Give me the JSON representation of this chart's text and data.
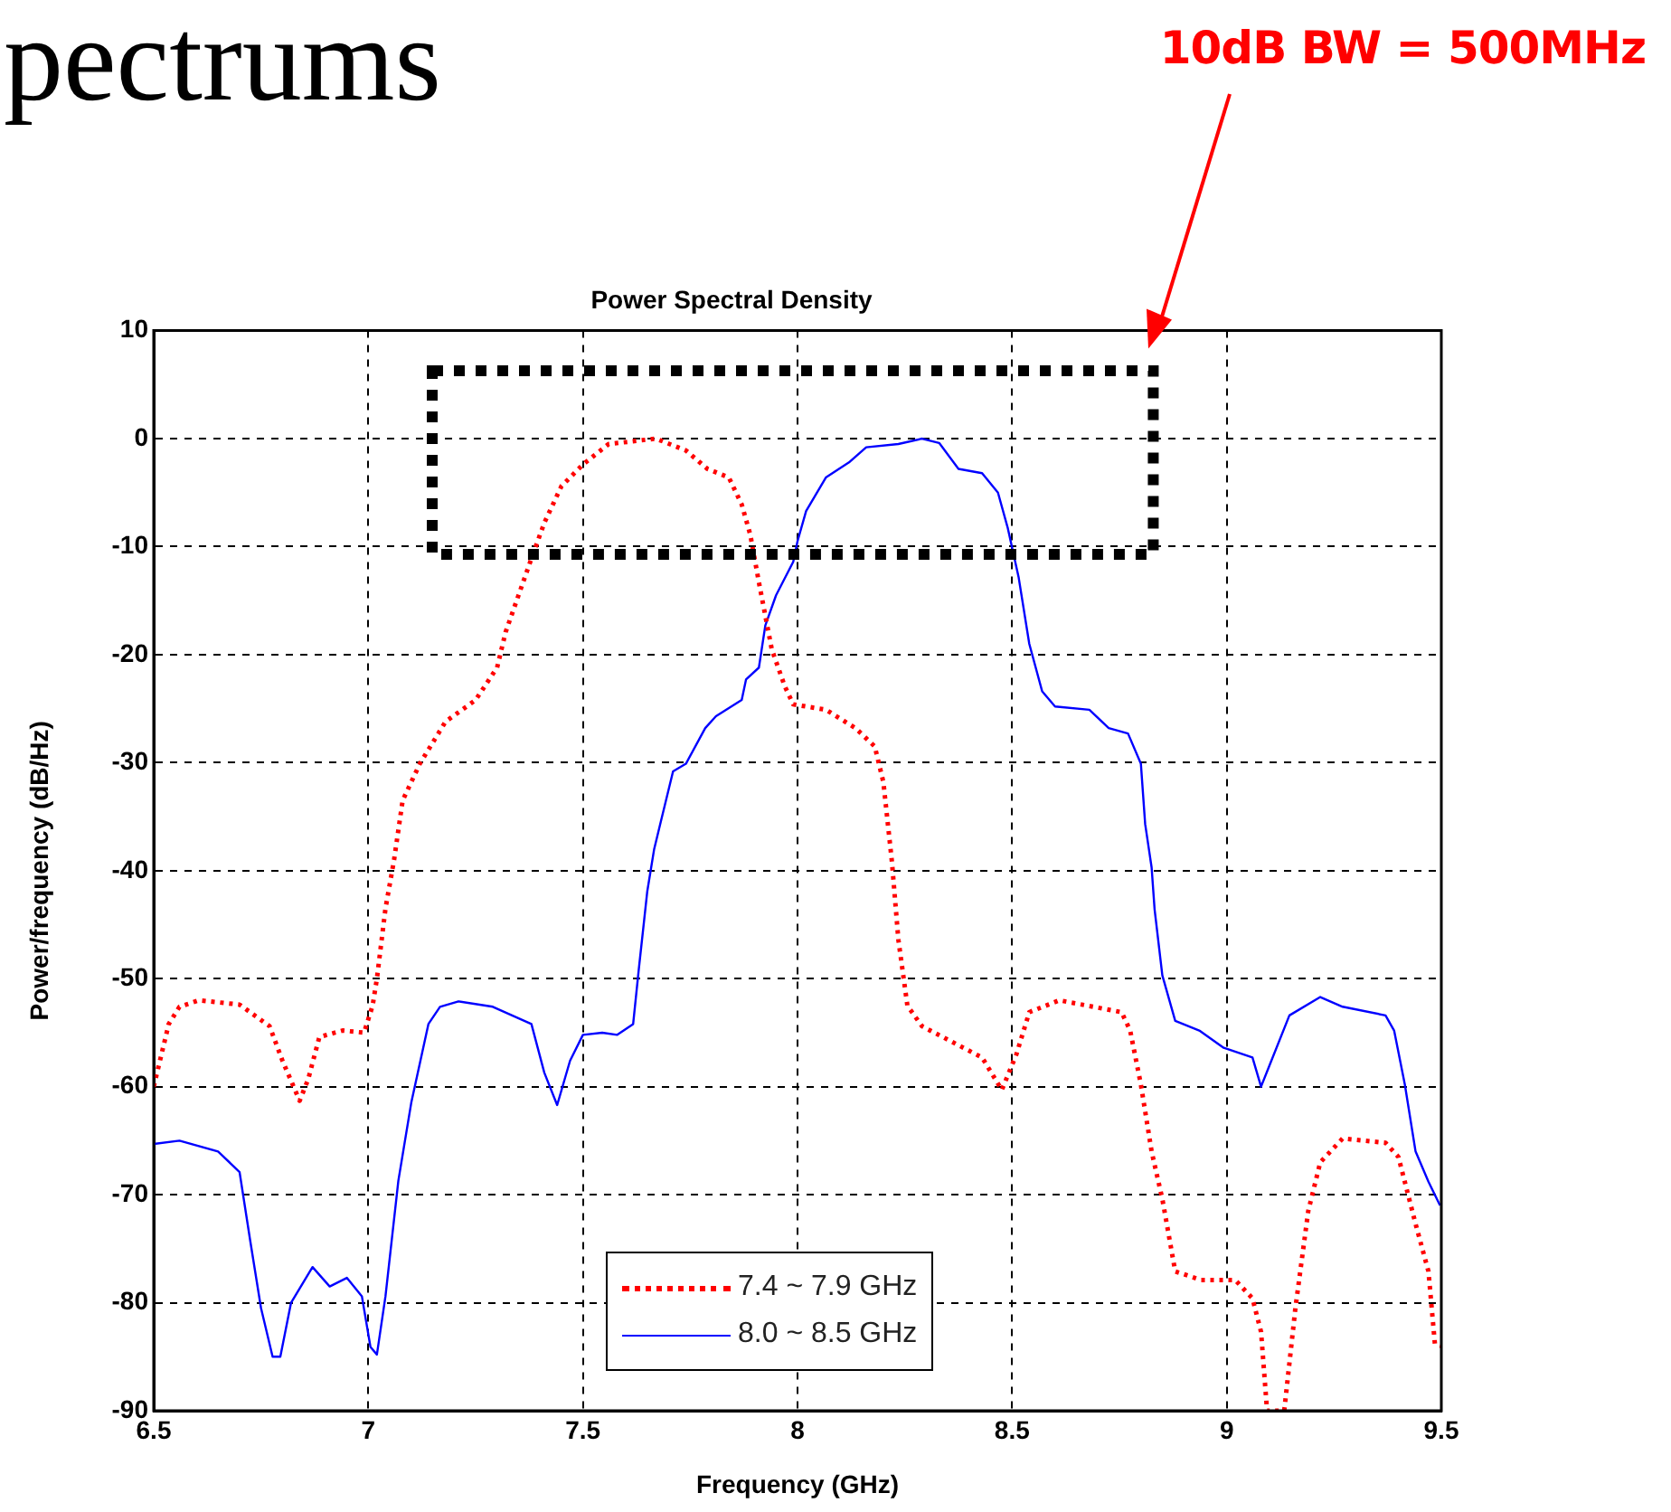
{
  "chart_data": {
    "type": "line",
    "title": "Power Spectral Density",
    "xlabel": "Frequency (GHz)",
    "ylabel": "Power/frequency (dB/Hz)",
    "xlim": [
      6.5,
      9.5
    ],
    "xticks": [
      6.5,
      7,
      7.5,
      8,
      8.5,
      9,
      9.5
    ],
    "ylim": [
      -90,
      10
    ],
    "yticks": [
      -90,
      -80,
      -70,
      -60,
      -50,
      -40,
      -30,
      -20,
      -10,
      0,
      10
    ],
    "grid": true,
    "legend": "bottom",
    "annotations": [
      "pectrums",
      "10dB BW = 500MHz"
    ],
    "series": [
      {
        "name": "7.4 ~ 7.9 GHz",
        "color": "#ff0000",
        "line_style": "dotted",
        "x": [
          6.5,
          6.535,
          6.56,
          6.605,
          6.7,
          6.77,
          6.8,
          6.84,
          6.86,
          6.886,
          6.94,
          6.99,
          7.01,
          7.02,
          7.04,
          7.06,
          7.08,
          7.12,
          7.18,
          7.25,
          7.3,
          7.32,
          7.35,
          7.38,
          7.41,
          7.45,
          7.5,
          7.56,
          7.67,
          7.74,
          7.79,
          7.84,
          7.87,
          7.89,
          7.91,
          7.94,
          7.97,
          7.99,
          8.066,
          8.135,
          8.18,
          8.2,
          8.22,
          8.235,
          8.256,
          8.29,
          8.43,
          8.476,
          8.51,
          8.54,
          8.61,
          8.755,
          8.775,
          8.8,
          8.825,
          8.85,
          8.88,
          8.94,
          9.02,
          9.06,
          9.08,
          9.094,
          9.134,
          9.16,
          9.19,
          9.218,
          9.27,
          9.37,
          9.4,
          9.44,
          9.47,
          9.485,
          9.5
        ],
        "values": [
          -60,
          -54.2,
          -52.6,
          -52,
          -52.4,
          -54.4,
          -57.6,
          -61.3,
          -59.3,
          -55.4,
          -54.8,
          -55,
          -52.5,
          -50,
          -43.5,
          -39,
          -33.5,
          -30.1,
          -26.2,
          -24.2,
          -21.2,
          -17.9,
          -14.5,
          -11.1,
          -7.8,
          -4.4,
          -2.4,
          -0.5,
          0,
          -1.1,
          -2.8,
          -3.6,
          -6.1,
          -8.9,
          -13.3,
          -19.5,
          -22.9,
          -24.6,
          -25.1,
          -26.8,
          -28.5,
          -31.8,
          -39.2,
          -46.4,
          -52.5,
          -54.4,
          -57.3,
          -60.3,
          -57,
          -53.1,
          -52,
          -53.1,
          -54.8,
          -59.8,
          -66,
          -70.4,
          -77.1,
          -77.9,
          -77.9,
          -79.6,
          -82.7,
          -90,
          -90,
          -80.5,
          -71.5,
          -67,
          -64.8,
          -65.2,
          -66.5,
          -72.7,
          -77.1,
          -83.8,
          -84
        ]
      },
      {
        "name": "8.0 ~ 8.5 GHz",
        "color": "#0000ff",
        "line_style": "solid",
        "x": [
          6.5,
          6.56,
          6.65,
          6.7,
          6.725,
          6.75,
          6.777,
          6.795,
          6.82,
          6.87,
          6.91,
          6.95,
          6.985,
          7.005,
          7.02,
          7.04,
          7.07,
          7.1,
          7.14,
          7.167,
          7.21,
          7.29,
          7.38,
          7.41,
          7.44,
          7.47,
          7.5,
          7.545,
          7.58,
          7.617,
          7.63,
          7.65,
          7.666,
          7.68,
          7.71,
          7.74,
          7.785,
          7.81,
          7.87,
          7.88,
          7.91,
          7.925,
          7.95,
          7.99,
          8.0,
          8.02,
          8.066,
          8.12,
          8.16,
          8.235,
          8.29,
          8.33,
          8.375,
          8.43,
          8.467,
          8.49,
          8.515,
          8.54,
          8.57,
          8.6,
          8.68,
          8.725,
          8.77,
          8.8,
          8.81,
          8.825,
          8.832,
          8.85,
          8.88,
          8.936,
          8.993,
          9.06,
          9.08,
          9.1,
          9.146,
          9.218,
          9.27,
          9.37,
          9.39,
          9.415,
          9.44,
          9.47,
          9.497
        ],
        "values": [
          -65.3,
          -65,
          -66,
          -67.9,
          -74.3,
          -80.5,
          -85,
          -85,
          -80,
          -76.7,
          -78.5,
          -77.7,
          -79.4,
          -84.1,
          -84.8,
          -79.4,
          -68.7,
          -61.5,
          -54.2,
          -52.6,
          -52.1,
          -52.6,
          -54.2,
          -58.7,
          -61.7,
          -57.6,
          -55.2,
          -55,
          -55.2,
          -54.2,
          -49.2,
          -41.9,
          -38,
          -35.7,
          -30.8,
          -30.1,
          -26.8,
          -25.7,
          -24.2,
          -22.3,
          -21.2,
          -17.3,
          -14.5,
          -11.4,
          -9.5,
          -6.7,
          -3.6,
          -2.2,
          -0.8,
          -0.5,
          0,
          -0.4,
          -2.8,
          -3.2,
          -5,
          -8.3,
          -12.8,
          -19,
          -23.4,
          -24.8,
          -25.1,
          -26.8,
          -27.3,
          -30.1,
          -35.7,
          -39.7,
          -43.6,
          -49.7,
          -53.9,
          -54.8,
          -56.4,
          -57.3,
          -60,
          -58,
          -53.4,
          -51.7,
          -52.6,
          -53.4,
          -54.8,
          -59.8,
          -66,
          -68.8,
          -71
        ]
      }
    ]
  }
}
